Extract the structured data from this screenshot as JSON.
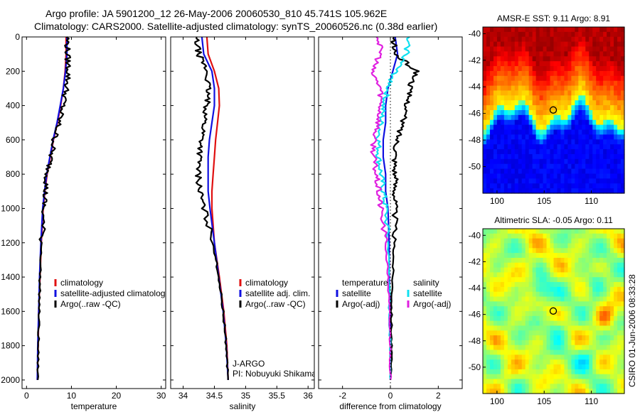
{
  "header": {
    "line1": "Argo profile: JA 5901200_12 26-May-2006 20060530_810 45.741S 105.962E",
    "line2": "Climatology: CARS2000. Satellite-adjusted climatology: synTS_20060526.nc (0.38d earlier)"
  },
  "side_label": "CSIRO 01-Jun-2006 08:33:28",
  "colors": {
    "red": "#e01010",
    "blue": "#1010e0",
    "black": "#000000",
    "cyan": "#10e0f0",
    "magenta": "#e020e0"
  },
  "chart_data": [
    {
      "id": "temperature",
      "type": "line",
      "xlabel": "temperature",
      "ylabel": "",
      "xlim": [
        -1,
        31
      ],
      "ylim": [
        0,
        2050
      ],
      "y_inverted": true,
      "xticks": [
        0,
        10,
        20,
        30
      ],
      "yticks": [
        0,
        200,
        400,
        600,
        800,
        1000,
        1200,
        1400,
        1600,
        1800,
        2000
      ],
      "legend": [
        "climatology",
        "satellite-adjusted climatology",
        "Argo(..raw -QC)"
      ],
      "series": [
        {
          "name": "climatology",
          "color": "red",
          "x": [
            8.8,
            8.8,
            8.6,
            8.2,
            7.6,
            6.9,
            6.0,
            5.3,
            4.6,
            4.1,
            3.7,
            3.3,
            3.0,
            2.7,
            2.6,
            2.4
          ],
          "y": [
            0,
            100,
            200,
            300,
            400,
            500,
            600,
            700,
            800,
            900,
            1000,
            1200,
            1400,
            1600,
            1800,
            2000
          ]
        },
        {
          "name": "satellite-adjusted climatology",
          "color": "blue",
          "x": [
            9.0,
            9.0,
            8.7,
            8.2,
            7.5,
            6.8,
            5.9,
            5.2,
            4.5,
            4.0,
            3.6,
            3.2,
            2.9,
            2.7,
            2.5,
            2.4
          ],
          "y": [
            0,
            100,
            200,
            300,
            400,
            500,
            600,
            700,
            800,
            900,
            1000,
            1200,
            1400,
            1600,
            1800,
            2000
          ]
        },
        {
          "name": "Argo(..raw -QC)",
          "color": "black",
          "x": [
            9.1,
            9.1,
            9.4,
            8.9,
            8.1,
            7.2,
            6.2,
            5.4,
            4.7,
            4.2,
            3.8,
            3.4,
            3.0,
            2.8,
            2.6,
            2.5
          ],
          "y": [
            0,
            100,
            200,
            300,
            400,
            500,
            600,
            700,
            800,
            900,
            1000,
            1200,
            1400,
            1600,
            1800,
            2000
          ]
        }
      ]
    },
    {
      "id": "salinity",
      "type": "line",
      "xlabel": "salinity",
      "ylabel": "",
      "xlim": [
        33.8,
        36.1
      ],
      "ylim": [
        0,
        2050
      ],
      "y_inverted": true,
      "xticks": [
        34,
        34.5,
        35,
        35.5,
        36
      ],
      "legend": [
        "climatology",
        "satellite adj. clim.",
        "Argo(..raw -QC)"
      ],
      "annotation": [
        "J-ARGO",
        "PI: Nobuyuki Shikama"
      ],
      "series": [
        {
          "name": "climatology",
          "color": "red",
          "x": [
            34.38,
            34.4,
            34.5,
            34.57,
            34.58,
            34.55,
            34.52,
            34.5,
            34.48,
            34.46,
            34.46,
            34.5,
            34.58,
            34.65,
            34.7,
            34.72
          ],
          "y": [
            0,
            100,
            200,
            300,
            400,
            500,
            600,
            700,
            800,
            900,
            1000,
            1200,
            1400,
            1600,
            1800,
            2000
          ]
        },
        {
          "name": "satellite adj. clim.",
          "color": "blue",
          "x": [
            34.3,
            34.33,
            34.46,
            34.5,
            34.5,
            34.46,
            34.42,
            34.4,
            34.4,
            34.4,
            34.43,
            34.5,
            34.57,
            34.64,
            34.69,
            34.72
          ],
          "y": [
            0,
            100,
            200,
            300,
            400,
            500,
            600,
            700,
            800,
            900,
            1000,
            1200,
            1400,
            1600,
            1800,
            2000
          ]
        },
        {
          "name": "Argo(..raw -QC)",
          "color": "black",
          "x": [
            34.2,
            34.25,
            34.38,
            34.4,
            34.38,
            34.34,
            34.3,
            34.26,
            34.24,
            34.27,
            34.33,
            34.48,
            34.57,
            34.64,
            34.69,
            34.72
          ],
          "y": [
            0,
            100,
            200,
            300,
            400,
            500,
            600,
            700,
            800,
            900,
            1000,
            1200,
            1400,
            1600,
            1800,
            2000
          ]
        }
      ]
    },
    {
      "id": "difference",
      "type": "line",
      "xlabel": "difference from climatology",
      "ylabel": "",
      "xlim": [
        -3,
        3
      ],
      "ylim": [
        0,
        2050
      ],
      "y_inverted": true,
      "xticks": [
        -2,
        0,
        2
      ],
      "legend_left": [
        "temperature",
        "satellite",
        "Argo(-adj)"
      ],
      "legend_right": [
        "salinity",
        "satellite",
        "Argo(-adj)"
      ],
      "series": [
        {
          "name": "temperature satellite",
          "color": "blue",
          "x": [
            0.2,
            0.3,
            0.1,
            -0.1,
            -0.2,
            -0.2,
            -0.3,
            -0.3,
            -0.2,
            -0.2,
            -0.1,
            -0.05,
            -0.05,
            0.0,
            0.0,
            0.0
          ],
          "y": [
            0,
            100,
            200,
            300,
            400,
            500,
            600,
            700,
            800,
            900,
            1000,
            1200,
            1400,
            1600,
            1800,
            2000
          ]
        },
        {
          "name": "temperature Argo(-adj)",
          "color": "black",
          "x": [
            0.1,
            0.2,
            1.1,
            0.8,
            0.7,
            0.5,
            0.3,
            0.2,
            0.2,
            0.2,
            0.2,
            0.15,
            0.1,
            0.05,
            0.05,
            0.0
          ],
          "y": [
            0,
            100,
            200,
            300,
            400,
            500,
            600,
            700,
            800,
            900,
            1000,
            1200,
            1400,
            1600,
            1800,
            2000
          ]
        },
        {
          "name": "salinity satellite",
          "color": "cyan",
          "x": [
            0.7,
            0.7,
            0.2,
            -0.1,
            -0.3,
            -0.4,
            -0.5,
            -0.5,
            -0.4,
            -0.3,
            -0.2,
            -0.1,
            -0.05,
            -0.05,
            0.0,
            0.0
          ],
          "y": [
            0,
            100,
            200,
            300,
            400,
            500,
            600,
            700,
            800,
            900,
            1000,
            1200,
            1400,
            1600,
            1800,
            2000
          ]
        },
        {
          "name": "salinity Argo(-adj)",
          "color": "magenta",
          "x": [
            -0.5,
            -0.4,
            -0.8,
            -0.4,
            -0.4,
            -0.5,
            -0.7,
            -0.7,
            -0.6,
            -0.5,
            -0.4,
            -0.2,
            -0.1,
            -0.05,
            0.0,
            0.0
          ],
          "y": [
            0,
            100,
            200,
            300,
            400,
            500,
            600,
            700,
            800,
            900,
            1000,
            1200,
            1400,
            1600,
            1800,
            2000
          ]
        }
      ]
    },
    {
      "id": "sst_map",
      "type": "heatmap",
      "title": "AMSR-E SST: 9.11 Argo: 8.91",
      "xlim": [
        98.5,
        113.5
      ],
      "ylim": [
        -52,
        -39.5
      ],
      "xticks": [
        100,
        105,
        110
      ],
      "yticks": [
        -40,
        -42,
        -44,
        -46,
        -48,
        -50
      ],
      "marker": {
        "lon": 105.962,
        "lat": -45.741
      }
    },
    {
      "id": "sla_map",
      "type": "heatmap",
      "title": "Altimetric SLA: -0.05 Argo: 0.11",
      "xlim": [
        98.5,
        113.5
      ],
      "ylim": [
        -52,
        -39.5
      ],
      "xticks": [
        100,
        105,
        110
      ],
      "yticks": [
        -40,
        -42,
        -44,
        -46,
        -48,
        -50
      ],
      "marker": {
        "lon": 105.962,
        "lat": -45.741
      }
    }
  ]
}
